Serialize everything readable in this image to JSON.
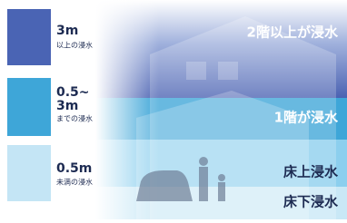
{
  "legend": [
    {
      "lines": [
        "3m"
      ],
      "sub": "以上の浸水"
    },
    {
      "lines": [
        "0.5~",
        "3m"
      ],
      "sub": "までの浸水"
    },
    {
      "lines": [
        "0.5m"
      ],
      "sub": "未満の浸水"
    }
  ],
  "areas": [
    "2階以上が浸水",
    "1階が浸水",
    "床上浸水",
    "床下浸水"
  ]
}
